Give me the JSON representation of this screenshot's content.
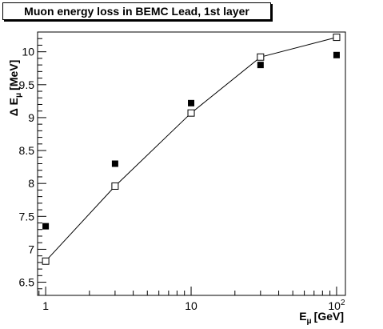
{
  "chart_data": {
    "type": "scatter",
    "title": "Muon energy loss in BEMC Lead, 1st layer",
    "xlabel": {
      "symbol": "E",
      "subscript": "μ",
      "unit": "[GeV]"
    },
    "ylabel": {
      "symbol": "Δ E",
      "subscript": "μ",
      "unit": "[MeV]"
    },
    "x_scale": "log",
    "xlim": [
      0.88,
      115
    ],
    "ylim": [
      6.3,
      10.3
    ],
    "x_ticks": [
      {
        "value": 1,
        "label": "1"
      },
      {
        "value": 10,
        "label": "10"
      },
      {
        "value": 100,
        "label": "10",
        "sup": "2"
      }
    ],
    "y_ticks": [
      {
        "value": 6.5,
        "label": "6.5"
      },
      {
        "value": 7,
        "label": "7"
      },
      {
        "value": 7.5,
        "label": "7.5"
      },
      {
        "value": 8,
        "label": "8"
      },
      {
        "value": 8.5,
        "label": "8.5"
      },
      {
        "value": 9,
        "label": "9"
      },
      {
        "value": 9.5,
        "label": "9.5"
      },
      {
        "value": 10,
        "label": "10"
      }
    ],
    "grid": false,
    "series": [
      {
        "marker": "filled-square",
        "color": "#000000",
        "x": [
          1,
          3,
          10,
          30,
          100
        ],
        "y": [
          7.35,
          8.3,
          9.22,
          9.8,
          9.95
        ]
      },
      {
        "marker": "open-square-line",
        "color": "#000000",
        "x": [
          1,
          3,
          10,
          30,
          100
        ],
        "y": [
          6.82,
          7.96,
          9.07,
          9.92,
          10.22
        ]
      }
    ]
  }
}
